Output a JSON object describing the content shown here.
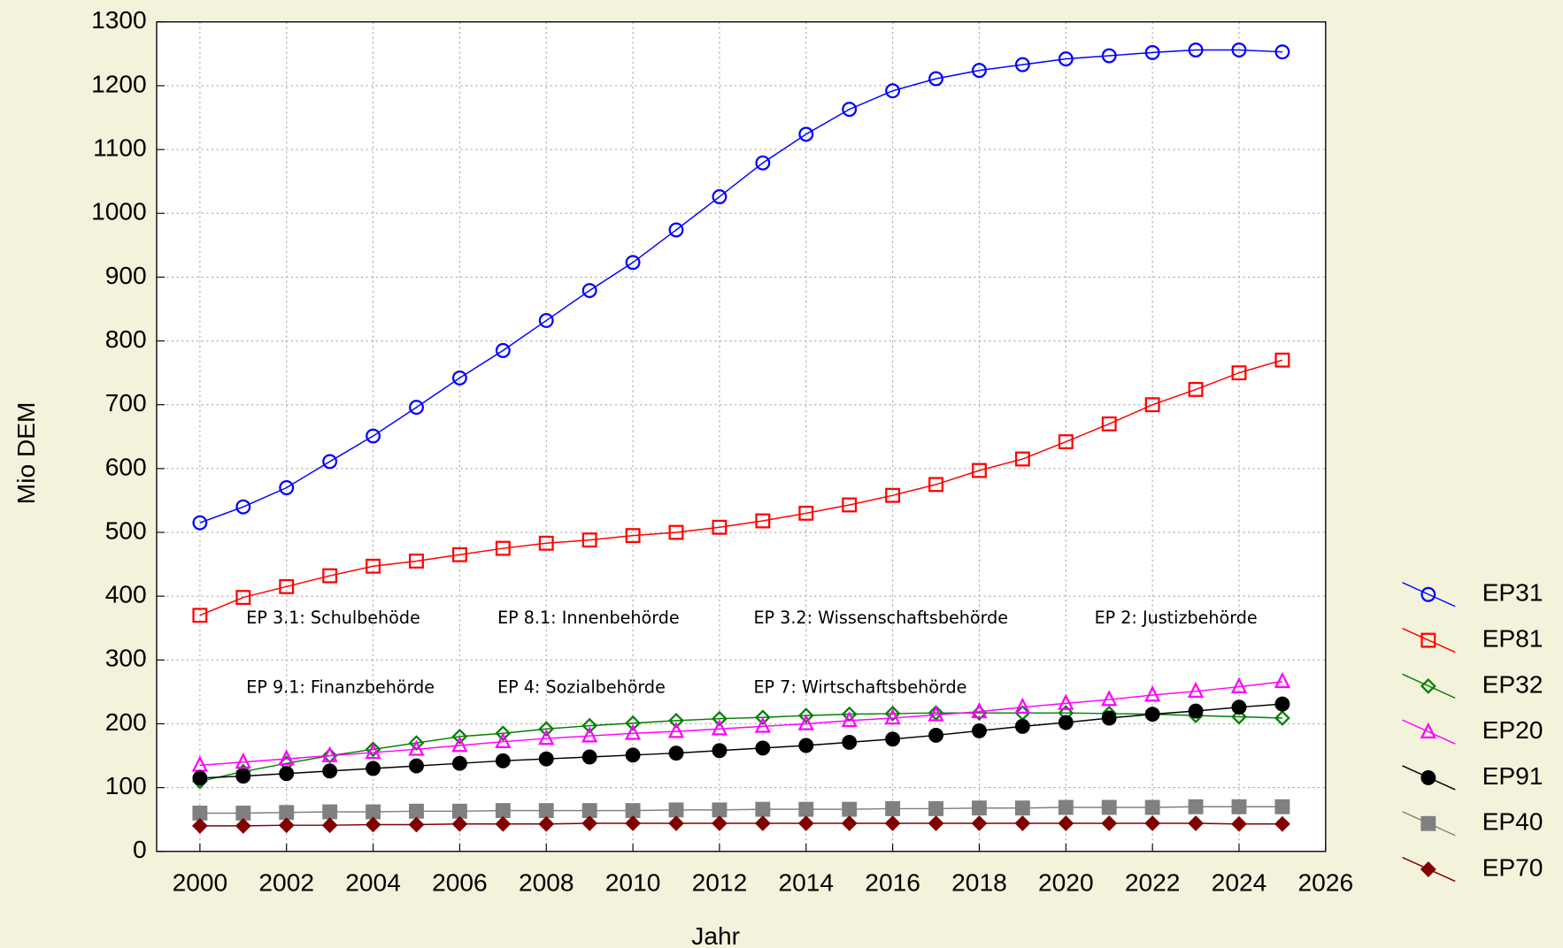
{
  "chart_data": {
    "type": "line",
    "xlabel": "Jahr",
    "ylabel": "Mio DEM",
    "x": [
      2000,
      2001,
      2002,
      2003,
      2004,
      2005,
      2006,
      2007,
      2008,
      2009,
      2010,
      2011,
      2012,
      2013,
      2014,
      2015,
      2016,
      2017,
      2018,
      2019,
      2020,
      2021,
      2022,
      2023,
      2024,
      2025
    ],
    "xlim": [
      1999,
      2026
    ],
    "xticks": [
      2000,
      2002,
      2004,
      2006,
      2008,
      2010,
      2012,
      2014,
      2016,
      2018,
      2020,
      2022,
      2024,
      2026
    ],
    "ylim": [
      0,
      1300
    ],
    "yticks": [
      0,
      100,
      200,
      300,
      400,
      500,
      600,
      700,
      800,
      900,
      1000,
      1100,
      1200,
      1300
    ],
    "grid": true,
    "series": [
      {
        "name": "EP31",
        "color": "#0000ff",
        "marker": "circle-open",
        "values": [
          515,
          540,
          570,
          611,
          651,
          696,
          742,
          785,
          832,
          879,
          923,
          974,
          1026,
          1079,
          1124,
          1163,
          1192,
          1211,
          1224,
          1233,
          1242,
          1247,
          1252,
          1256,
          1256,
          1253
        ]
      },
      {
        "name": "EP81",
        "color": "#ff0000",
        "marker": "square-open",
        "values": [
          370,
          398,
          415,
          432,
          447,
          455,
          465,
          475,
          483,
          488,
          495,
          500,
          508,
          518,
          530,
          543,
          558,
          575,
          597,
          615,
          642,
          670,
          700,
          724,
          750,
          770
        ]
      },
      {
        "name": "EP32",
        "color": "#008000",
        "marker": "diamond-open",
        "values": [
          110,
          125,
          138,
          150,
          160,
          170,
          180,
          185,
          192,
          197,
          201,
          205,
          208,
          210,
          213,
          215,
          216,
          217,
          217,
          217,
          217,
          216,
          215,
          213,
          211,
          209
        ]
      },
      {
        "name": "EP20",
        "color": "#ff00ff",
        "marker": "triangle-open",
        "values": [
          135,
          140,
          145,
          150,
          155,
          160,
          166,
          172,
          177,
          181,
          185,
          188,
          192,
          196,
          200,
          205,
          209,
          214,
          219,
          226,
          232,
          238,
          245,
          251,
          258,
          266
        ]
      },
      {
        "name": "EP91",
        "color": "#000000",
        "marker": "circle-filled",
        "values": [
          115,
          118,
          122,
          126,
          130,
          134,
          138,
          142,
          145,
          148,
          151,
          154,
          158,
          162,
          166,
          171,
          176,
          182,
          189,
          196,
          202,
          209,
          215,
          220,
          226,
          231
        ]
      },
      {
        "name": "EP40",
        "color": "#808080",
        "marker": "square-filled",
        "values": [
          60,
          60,
          61,
          62,
          62,
          63,
          63,
          64,
          64,
          64,
          64,
          65,
          65,
          66,
          66,
          66,
          67,
          67,
          68,
          68,
          69,
          69,
          69,
          70,
          70,
          70
        ]
      },
      {
        "name": "EP70",
        "color": "#800000",
        "marker": "diamond-filled",
        "values": [
          40,
          40,
          41,
          41,
          42,
          42,
          43,
          43,
          43,
          44,
          44,
          44,
          44,
          44,
          44,
          44,
          44,
          44,
          44,
          44,
          44,
          44,
          44,
          44,
          43,
          43
        ]
      }
    ],
    "annotations": [
      "EP 3.1: Schulbehöde",
      "EP 8.1: Innenbehörde",
      "EP 3.2: Wissenschaftsbehörde",
      "EP 2: Justizbehörde",
      "EP 9.1: Finanzbehörde",
      "EP 4: Sozialbehörde",
      "EP 7: Wirtschaftsbehörde"
    ]
  }
}
